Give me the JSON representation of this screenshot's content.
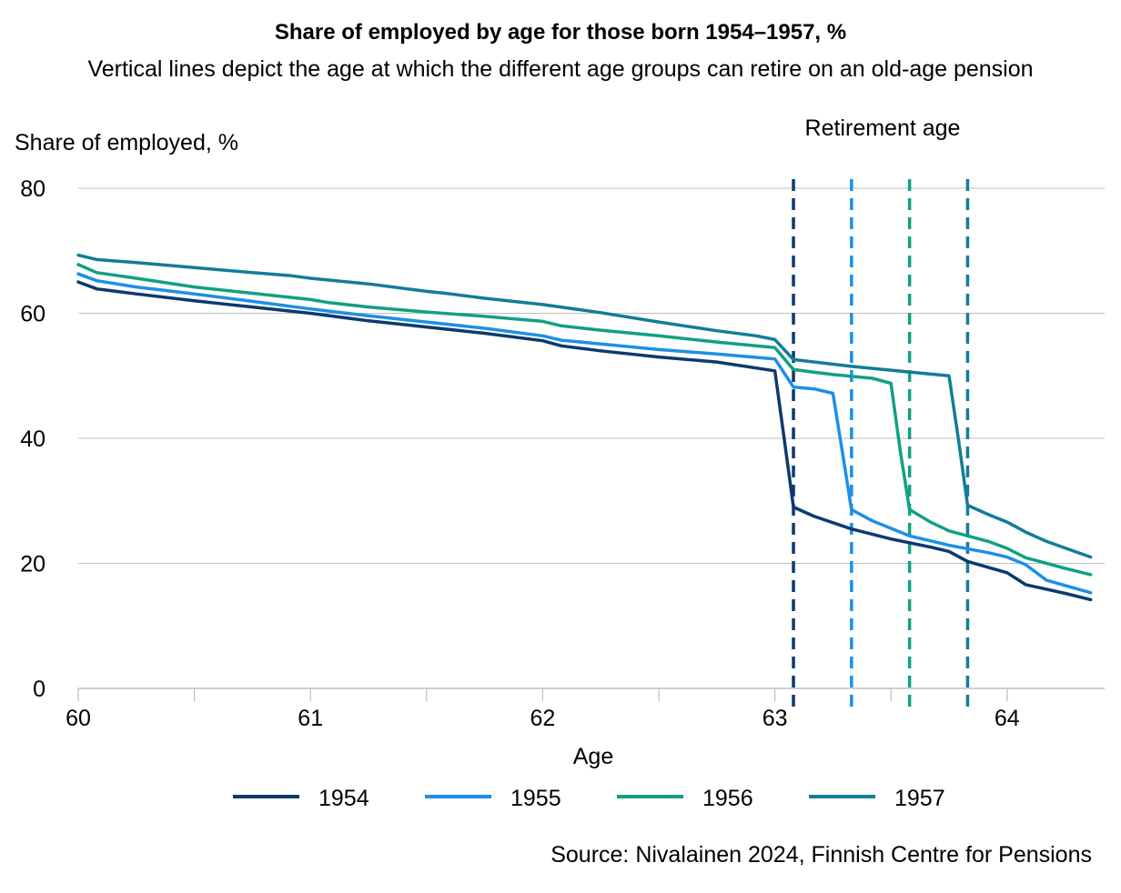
{
  "chart_data": {
    "type": "line",
    "title": "Share of employed by age for those born 1954–1957, %",
    "subtitle": "Vertical lines depict the age at which the different age groups can retire on an old-age pension",
    "xlabel": "Age",
    "ylabel": "Share of employed, %",
    "xlim": [
      60,
      64.42
    ],
    "ylim": [
      0,
      80
    ],
    "xticks": [
      60,
      61,
      62,
      63,
      64
    ],
    "yticks": [
      0,
      20,
      40,
      60,
      80
    ],
    "grid": "horizontal",
    "legend_position": "bottom",
    "annotation": "Retirement age",
    "retirement_lines": [
      {
        "series": "1954",
        "age": 63.08
      },
      {
        "series": "1955",
        "age": 63.33
      },
      {
        "series": "1956",
        "age": 63.58
      },
      {
        "series": "1957",
        "age": 63.83
      }
    ],
    "series": [
      {
        "name": "1954",
        "color": "#0b3a6e",
        "points": [
          [
            60,
            65
          ],
          [
            60.08,
            63.9
          ],
          [
            60.25,
            63.1
          ],
          [
            60.5,
            62
          ],
          [
            60.75,
            61
          ],
          [
            61,
            60
          ],
          [
            61.25,
            58.8
          ],
          [
            61.5,
            57.8
          ],
          [
            61.75,
            56.8
          ],
          [
            62,
            55.6
          ],
          [
            62.08,
            54.8
          ],
          [
            62.25,
            54
          ],
          [
            62.5,
            53
          ],
          [
            62.75,
            52.2
          ],
          [
            63,
            50.8
          ],
          [
            63.04,
            40
          ],
          [
            63.08,
            29
          ],
          [
            63.17,
            27.5
          ],
          [
            63.33,
            25.5
          ],
          [
            63.5,
            23.9
          ],
          [
            63.67,
            22.6
          ],
          [
            63.75,
            21.9
          ],
          [
            63.83,
            20.3
          ],
          [
            64,
            18.5
          ],
          [
            64.08,
            16.6
          ],
          [
            64.25,
            15.2
          ],
          [
            64.36,
            14.2
          ]
        ]
      },
      {
        "name": "1955",
        "color": "#1e8fe6",
        "points": [
          [
            60,
            66.3
          ],
          [
            60.08,
            65.2
          ],
          [
            60.25,
            64.2
          ],
          [
            60.5,
            63.1
          ],
          [
            60.75,
            61.9
          ],
          [
            61,
            60.7
          ],
          [
            61.25,
            59.6
          ],
          [
            61.5,
            58.6
          ],
          [
            61.75,
            57.6
          ],
          [
            62,
            56.4
          ],
          [
            62.08,
            55.7
          ],
          [
            62.25,
            55.1
          ],
          [
            62.5,
            54.2
          ],
          [
            62.75,
            53.5
          ],
          [
            63,
            52.7
          ],
          [
            63.08,
            48.2
          ],
          [
            63.17,
            47.9
          ],
          [
            63.25,
            47.2
          ],
          [
            63.29,
            38
          ],
          [
            63.33,
            28.6
          ],
          [
            63.42,
            26.8
          ],
          [
            63.58,
            24.4
          ],
          [
            63.75,
            22.9
          ],
          [
            63.92,
            21.7
          ],
          [
            64,
            21
          ],
          [
            64.08,
            19.8
          ],
          [
            64.17,
            17.3
          ],
          [
            64.36,
            15.3
          ]
        ]
      },
      {
        "name": "1956",
        "color": "#12a083",
        "points": [
          [
            60,
            67.8
          ],
          [
            60.08,
            66.5
          ],
          [
            60.25,
            65.6
          ],
          [
            60.5,
            64.2
          ],
          [
            60.75,
            63.2
          ],
          [
            61,
            62.2
          ],
          [
            61.08,
            61.7
          ],
          [
            61.25,
            61
          ],
          [
            61.5,
            60.2
          ],
          [
            61.75,
            59.5
          ],
          [
            62,
            58.7
          ],
          [
            62.08,
            58
          ],
          [
            62.25,
            57.3
          ],
          [
            62.5,
            56.4
          ],
          [
            62.75,
            55.4
          ],
          [
            63,
            54.5
          ],
          [
            63.08,
            51
          ],
          [
            63.25,
            50.2
          ],
          [
            63.42,
            49.6
          ],
          [
            63.5,
            48.8
          ],
          [
            63.54,
            38
          ],
          [
            63.58,
            28.6
          ],
          [
            63.67,
            26.6
          ],
          [
            63.75,
            25.2
          ],
          [
            63.92,
            23.5
          ],
          [
            64,
            22.4
          ],
          [
            64.08,
            20.9
          ],
          [
            64.25,
            19.2
          ],
          [
            64.36,
            18.2
          ]
        ]
      },
      {
        "name": "1957",
        "color": "#137c99",
        "points": [
          [
            60,
            69.3
          ],
          [
            60.08,
            68.6
          ],
          [
            60.25,
            68.1
          ],
          [
            60.5,
            67.3
          ],
          [
            60.75,
            66.5
          ],
          [
            60.92,
            66
          ],
          [
            61,
            65.6
          ],
          [
            61.25,
            64.7
          ],
          [
            61.5,
            63.5
          ],
          [
            61.58,
            63.2
          ],
          [
            61.75,
            62.4
          ],
          [
            62,
            61.4
          ],
          [
            62.25,
            60.1
          ],
          [
            62.5,
            58.6
          ],
          [
            62.75,
            57.2
          ],
          [
            62.92,
            56.4
          ],
          [
            63,
            55.8
          ],
          [
            63.08,
            52.6
          ],
          [
            63.33,
            51.5
          ],
          [
            63.5,
            50.9
          ],
          [
            63.58,
            50.6
          ],
          [
            63.75,
            50
          ],
          [
            63.79,
            40
          ],
          [
            63.83,
            29.3
          ],
          [
            63.92,
            27.8
          ],
          [
            64,
            26.6
          ],
          [
            64.08,
            25
          ],
          [
            64.17,
            23.5
          ],
          [
            64.36,
            21
          ]
        ]
      }
    ]
  },
  "source": "Source: Nivalainen 2024, Finnish Centre for Pensions"
}
